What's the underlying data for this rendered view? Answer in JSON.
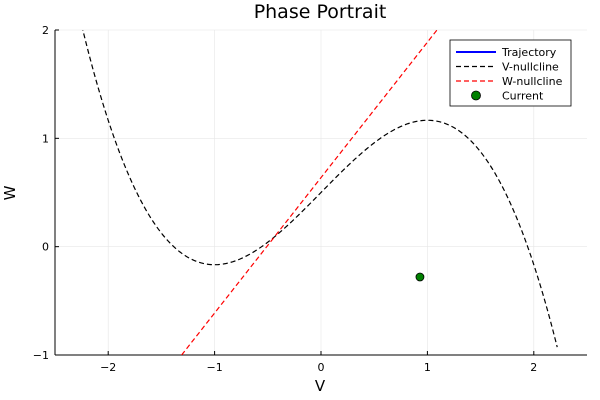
{
  "chart_data": {
    "type": "line",
    "title": "Phase Portrait",
    "xlabel": "V",
    "ylabel": "W",
    "xlim": [
      -2.5,
      2.5
    ],
    "ylim": [
      -1,
      2
    ],
    "xticks": [
      -2,
      -1,
      0,
      1,
      2
    ],
    "xtick_labels": [
      "−2",
      "−1",
      "0",
      "1",
      "2"
    ],
    "yticks": [
      -1,
      0,
      1,
      2
    ],
    "ytick_labels": [
      "−1",
      "0",
      "1",
      "2"
    ],
    "grid": true,
    "legend_position": "top-right",
    "series": [
      {
        "name": "Trajectory",
        "color": "#0000ff",
        "style": "solid",
        "points": []
      },
      {
        "name": "V-nullcline",
        "color": "#000000",
        "style": "dashed",
        "function": "cubic",
        "points": [
          [
            -2.3,
            2.0
          ],
          [
            -2.0,
            1.17
          ],
          [
            -1.75,
            0.54
          ],
          [
            -1.5,
            0.125
          ],
          [
            -1.25,
            -0.099
          ],
          [
            -1.0,
            -0.167
          ],
          [
            -0.75,
            -0.109
          ],
          [
            -0.5,
            0.042
          ],
          [
            -0.25,
            0.245
          ],
          [
            0.0,
            0.5
          ],
          [
            0.25,
            0.745
          ],
          [
            0.5,
            0.958
          ],
          [
            0.75,
            1.109
          ],
          [
            1.0,
            1.167
          ],
          [
            1.25,
            1.099
          ],
          [
            1.5,
            0.875
          ],
          [
            1.75,
            0.46
          ],
          [
            2.0,
            -0.167
          ],
          [
            2.22,
            -0.96
          ]
        ]
      },
      {
        "name": "W-nullcline",
        "color": "#ff0000",
        "style": "dashed",
        "points": [
          [
            -1.31,
            -1.0
          ],
          [
            1.09,
            2.0
          ]
        ]
      },
      {
        "name": "Current",
        "color": "#008000",
        "style": "marker",
        "points": [
          [
            0.93,
            -0.28
          ]
        ]
      }
    ]
  }
}
